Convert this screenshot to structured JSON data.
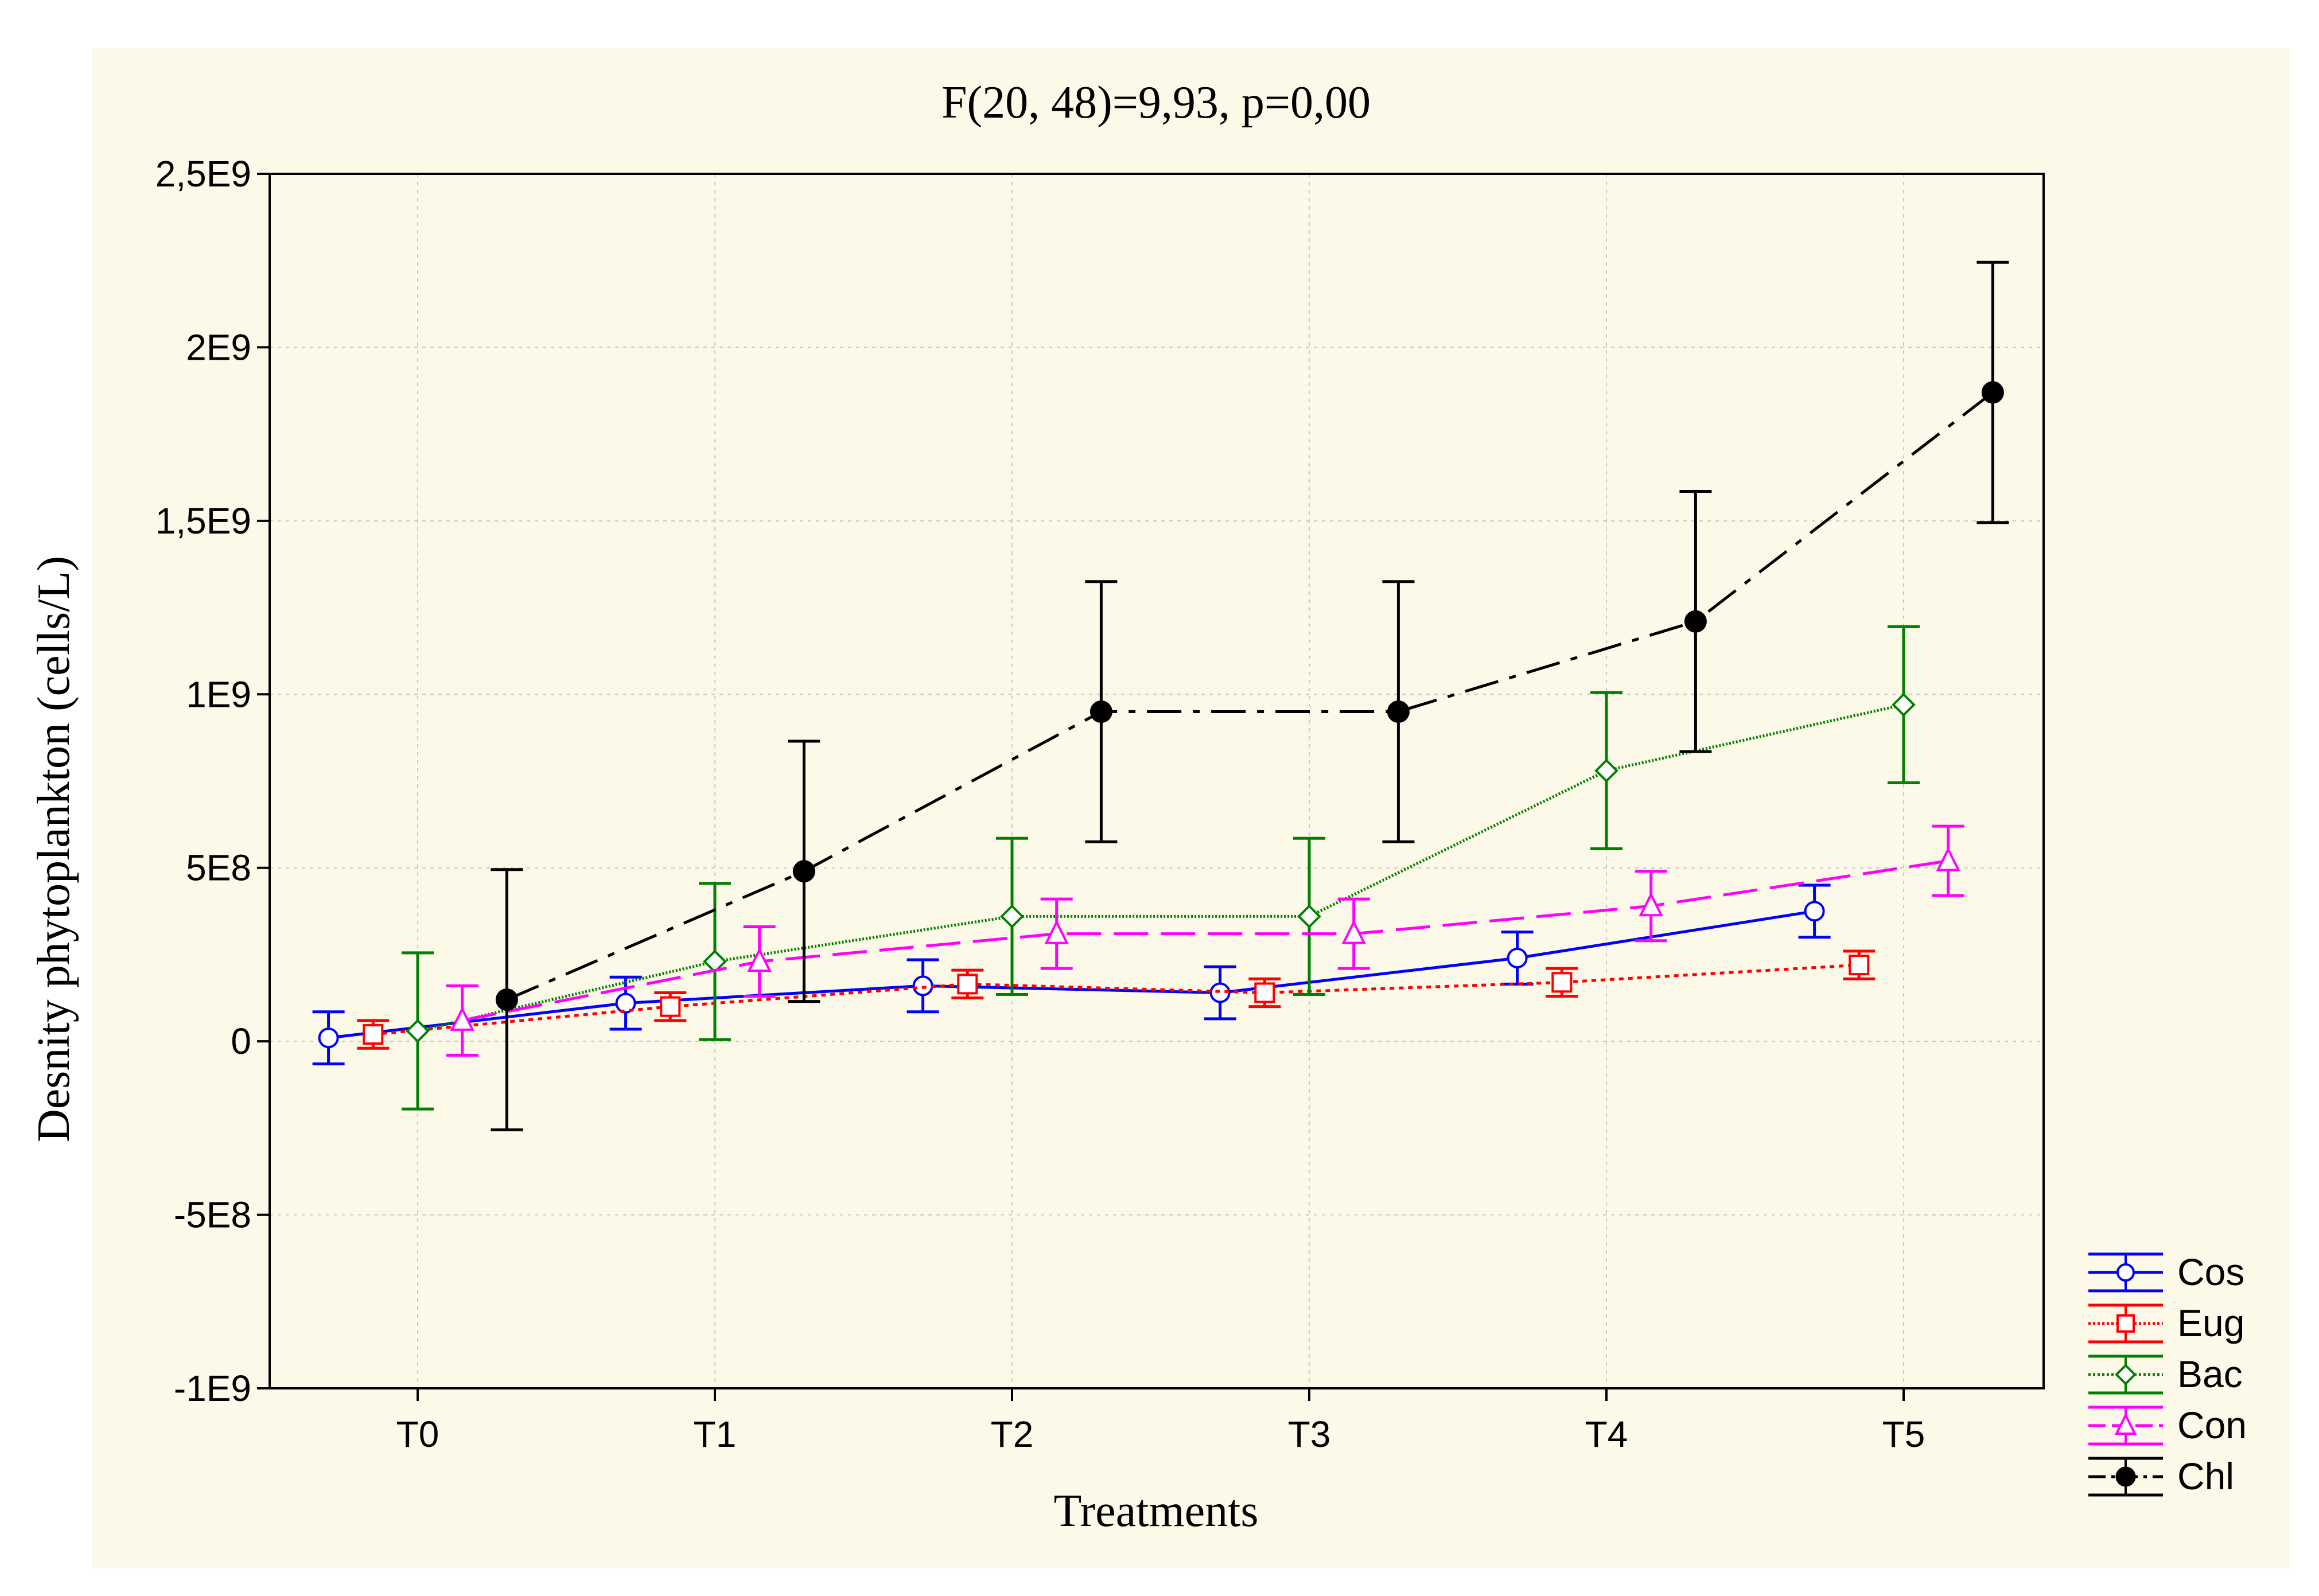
{
  "chart_data": {
    "type": "line",
    "title": "F(20, 48)=9,93, p=0,00",
    "xlabel": "Treatments",
    "ylabel": "Desnity phytoplankton (cells/L)",
    "categories": [
      "T0",
      "T1",
      "T2",
      "T3",
      "T4",
      "T5"
    ],
    "ylim": [
      -1000000000,
      2500000000
    ],
    "yticks": [
      -1000000000,
      -500000000,
      0,
      500000000,
      1000000000,
      1500000000,
      2000000000,
      2500000000
    ],
    "ytick_labels": [
      "-1E9",
      "-5E8",
      "0",
      "5E8",
      "1E9",
      "1,5E9",
      "2E9",
      "2,5E9"
    ],
    "grid": true,
    "legend_position": "bottom-right",
    "series": [
      {
        "name": "Cos",
        "color": "#0000ff",
        "marker": "circle",
        "dash": "",
        "offset": -0.3,
        "values": [
          10000000,
          110000000,
          160000000,
          140000000,
          240000000,
          375000000
        ],
        "errors": [
          75000000,
          75000000,
          75000000,
          75000000,
          75000000,
          75000000
        ]
      },
      {
        "name": "Eug",
        "color": "#ff0000",
        "marker": "square",
        "dash": "8 8",
        "offset": -0.15,
        "values": [
          20000000,
          100000000,
          165000000,
          140000000,
          170000000,
          220000000
        ],
        "errors": [
          40000000,
          40000000,
          40000000,
          40000000,
          40000000,
          40000000
        ]
      },
      {
        "name": "Bac",
        "color": "#008000",
        "marker": "diamond",
        "dash": "3 3",
        "offset": 0.0,
        "values": [
          30000000,
          230000000,
          360000000,
          360000000,
          780000000,
          970000000
        ],
        "errors": [
          225000000,
          225000000,
          225000000,
          225000000,
          225000000,
          225000000
        ]
      },
      {
        "name": "Con",
        "color": "#ff00ff",
        "marker": "triangle",
        "dash": "60 22",
        "offset": 0.15,
        "values": [
          60000000,
          230000000,
          310000000,
          310000000,
          390000000,
          520000000
        ],
        "errors": [
          100000000,
          100000000,
          100000000,
          100000000,
          100000000,
          100000000
        ]
      },
      {
        "name": "Chl",
        "color": "#000000",
        "marker": "filled-circle",
        "dash": "60 20 12 20",
        "offset": 0.3,
        "values": [
          120000000,
          490000000,
          950000000,
          950000000,
          1210000000,
          1870000000
        ],
        "errors": [
          375000000,
          375000000,
          375000000,
          375000000,
          375000000,
          375000000
        ]
      }
    ]
  }
}
